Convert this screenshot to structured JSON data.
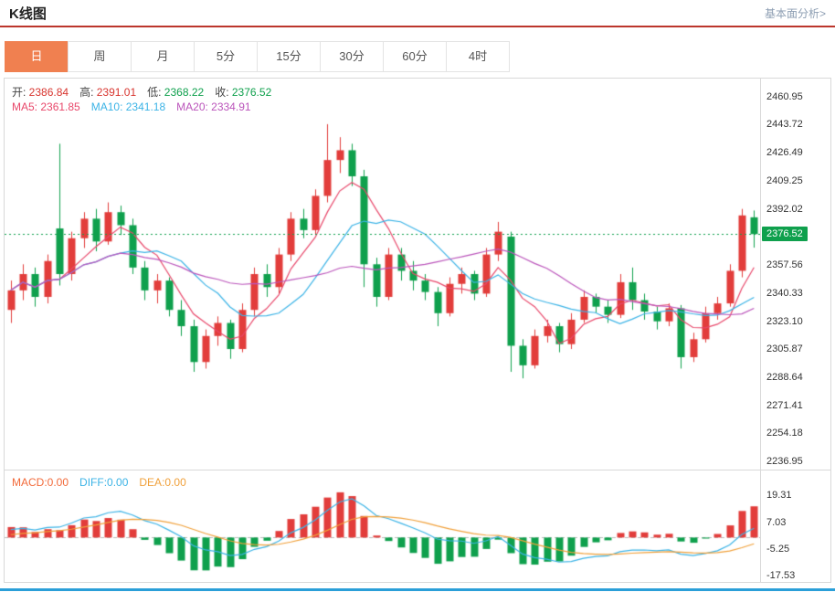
{
  "header": {
    "title": "K线图",
    "link": "基本面分析>"
  },
  "tabs": {
    "items": [
      "日",
      "周",
      "月",
      "5分",
      "15分",
      "30分",
      "60分",
      "4时"
    ],
    "active_index": 0
  },
  "legend": {
    "ohlc": [
      {
        "label": "开:",
        "value": "2386.84",
        "color": "#d8352f"
      },
      {
        "label": "高:",
        "value": "2391.01",
        "color": "#d8352f"
      },
      {
        "label": "低:",
        "value": "2368.22",
        "color": "#0fa04d"
      },
      {
        "label": "收:",
        "value": "2376.52",
        "color": "#0fa04d"
      }
    ],
    "ma": [
      {
        "label": "MA5:",
        "value": "2361.85",
        "color": "#e8476a"
      },
      {
        "label": "MA10:",
        "value": "2341.18",
        "color": "#3bb3e6"
      },
      {
        "label": "MA20:",
        "value": "2334.91",
        "color": "#bb55bb"
      }
    ],
    "macd": [
      {
        "label": "MACD:",
        "value": "0.00",
        "color": "#f26a3a"
      },
      {
        "label": "DIFF:",
        "value": "0.00",
        "color": "#3bb3e6"
      },
      {
        "label": "DEA:",
        "value": "0.00",
        "color": "#f0a03a"
      }
    ]
  },
  "chart_data": {
    "type": "candlestick",
    "title": "K线图",
    "current_price": 2376.52,
    "price_axis": {
      "range": [
        2472,
        2232
      ],
      "ticks": [
        2460.95,
        2443.72,
        2426.49,
        2409.25,
        2392.02,
        2357.56,
        2340.33,
        2323.1,
        2305.87,
        2288.64,
        2271.41,
        2254.18,
        2236.95
      ]
    },
    "macd_axis": {
      "range": [
        30.77,
        -20.4
      ],
      "ticks": [
        19.31,
        7.03,
        -5.25,
        -17.53
      ]
    },
    "ma_windows": [
      5,
      10,
      20
    ],
    "colors": {
      "up": "#e23d3b",
      "down": "#0fa04d",
      "ma5": "#e8476a",
      "ma10": "#3bb3e6",
      "ma20": "#bb55bb",
      "diff": "#3bb3e6",
      "dea": "#f0a03a",
      "price_line": "#0fa04d",
      "tag_bg": "#0fa04d",
      "active_tab": "#f08050",
      "accent_bottom": "#2b9fd8",
      "header_rule": "#bc362c"
    },
    "candles": [
      [
        2330,
        2348,
        2322,
        2342
      ],
      [
        2342,
        2358,
        2336,
        2352
      ],
      [
        2352,
        2356,
        2332,
        2338
      ],
      [
        2338,
        2364,
        2334,
        2360
      ],
      [
        2380,
        2432,
        2345,
        2352
      ],
      [
        2352,
        2378,
        2348,
        2374
      ],
      [
        2374,
        2390,
        2368,
        2386
      ],
      [
        2386,
        2392,
        2366,
        2372
      ],
      [
        2372,
        2396,
        2370,
        2390
      ],
      [
        2390,
        2394,
        2376,
        2382
      ],
      [
        2382,
        2386,
        2352,
        2356
      ],
      [
        2356,
        2360,
        2336,
        2342
      ],
      [
        2342,
        2352,
        2334,
        2348
      ],
      [
        2348,
        2350,
        2326,
        2330
      ],
      [
        2330,
        2336,
        2314,
        2320
      ],
      [
        2320,
        2324,
        2292,
        2298
      ],
      [
        2298,
        2318,
        2294,
        2314
      ],
      [
        2314,
        2326,
        2308,
        2322
      ],
      [
        2322,
        2324,
        2300,
        2306
      ],
      [
        2306,
        2334,
        2304,
        2330
      ],
      [
        2330,
        2356,
        2326,
        2352
      ],
      [
        2352,
        2358,
        2338,
        2344
      ],
      [
        2344,
        2368,
        2340,
        2364
      ],
      [
        2364,
        2390,
        2360,
        2386
      ],
      [
        2386,
        2392,
        2374,
        2379
      ],
      [
        2379,
        2404,
        2376,
        2400
      ],
      [
        2400,
        2444,
        2396,
        2422
      ],
      [
        2422,
        2436,
        2414,
        2428
      ],
      [
        2428,
        2432,
        2406,
        2412
      ],
      [
        2412,
        2416,
        2344,
        2358
      ],
      [
        2358,
        2362,
        2332,
        2338
      ],
      [
        2338,
        2368,
        2336,
        2364
      ],
      [
        2364,
        2368,
        2348,
        2354
      ],
      [
        2354,
        2360,
        2342,
        2348
      ],
      [
        2348,
        2352,
        2336,
        2341
      ],
      [
        2341,
        2344,
        2320,
        2328
      ],
      [
        2328,
        2350,
        2326,
        2346
      ],
      [
        2346,
        2356,
        2340,
        2352
      ],
      [
        2352,
        2354,
        2336,
        2340
      ],
      [
        2340,
        2368,
        2338,
        2364
      ],
      [
        2364,
        2384,
        2360,
        2378
      ],
      [
        2375,
        2378,
        2292,
        2308
      ],
      [
        2308,
        2312,
        2288,
        2296
      ],
      [
        2296,
        2318,
        2294,
        2314
      ],
      [
        2314,
        2324,
        2310,
        2320
      ],
      [
        2320,
        2322,
        2304,
        2309
      ],
      [
        2309,
        2328,
        2306,
        2324
      ],
      [
        2324,
        2342,
        2322,
        2338
      ],
      [
        2338,
        2340,
        2328,
        2332
      ],
      [
        2332,
        2336,
        2322,
        2327
      ],
      [
        2327,
        2352,
        2325,
        2347
      ],
      [
        2347,
        2356,
        2330,
        2336
      ],
      [
        2336,
        2340,
        2324,
        2329
      ],
      [
        2329,
        2332,
        2318,
        2323
      ],
      [
        2323,
        2334,
        2320,
        2331
      ],
      [
        2331,
        2333,
        2294,
        2301
      ],
      [
        2301,
        2316,
        2298,
        2312
      ],
      [
        2312,
        2332,
        2310,
        2328
      ],
      [
        2328,
        2338,
        2324,
        2334
      ],
      [
        2334,
        2358,
        2332,
        2354
      ],
      [
        2354,
        2392,
        2350,
        2388
      ],
      [
        2386.84,
        2391.01,
        2368.22,
        2376.52
      ]
    ]
  }
}
